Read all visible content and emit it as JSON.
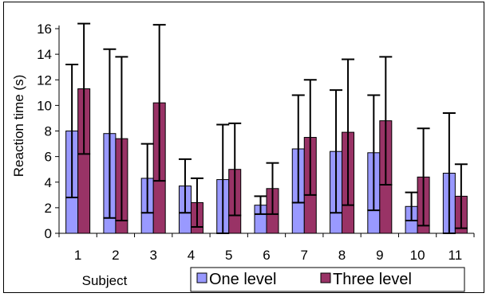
{
  "chart_data": {
    "type": "bar",
    "title": "",
    "xlabel": "Subject",
    "ylabel": "Reaction time (s)",
    "ylim": [
      0,
      16
    ],
    "yticks": [
      "0",
      "2",
      "4",
      "6",
      "8",
      "10",
      "12",
      "14",
      "16"
    ],
    "categories": [
      "1",
      "2",
      "3",
      "4",
      "5",
      "6",
      "7",
      "8",
      "9",
      "10",
      "11"
    ],
    "error_bars": "symmetric",
    "grid": false,
    "legend_position": "bottom-right",
    "series": [
      {
        "name": "One level",
        "color": "#9999ff",
        "values": [
          8.0,
          7.8,
          4.3,
          3.7,
          4.2,
          2.2,
          6.6,
          6.4,
          6.3,
          2.1,
          4.7
        ],
        "errors": [
          5.2,
          6.6,
          2.7,
          2.1,
          4.3,
          0.7,
          4.2,
          4.8,
          4.5,
          1.1,
          4.7
        ]
      },
      {
        "name": "Three level",
        "color": "#993366",
        "values": [
          11.3,
          7.4,
          10.2,
          2.4,
          5.0,
          3.5,
          7.5,
          7.9,
          8.8,
          4.4,
          2.9
        ],
        "errors": [
          5.1,
          6.4,
          6.1,
          1.9,
          3.6,
          2.0,
          4.5,
          5.7,
          5.0,
          3.8,
          2.5
        ]
      }
    ]
  }
}
